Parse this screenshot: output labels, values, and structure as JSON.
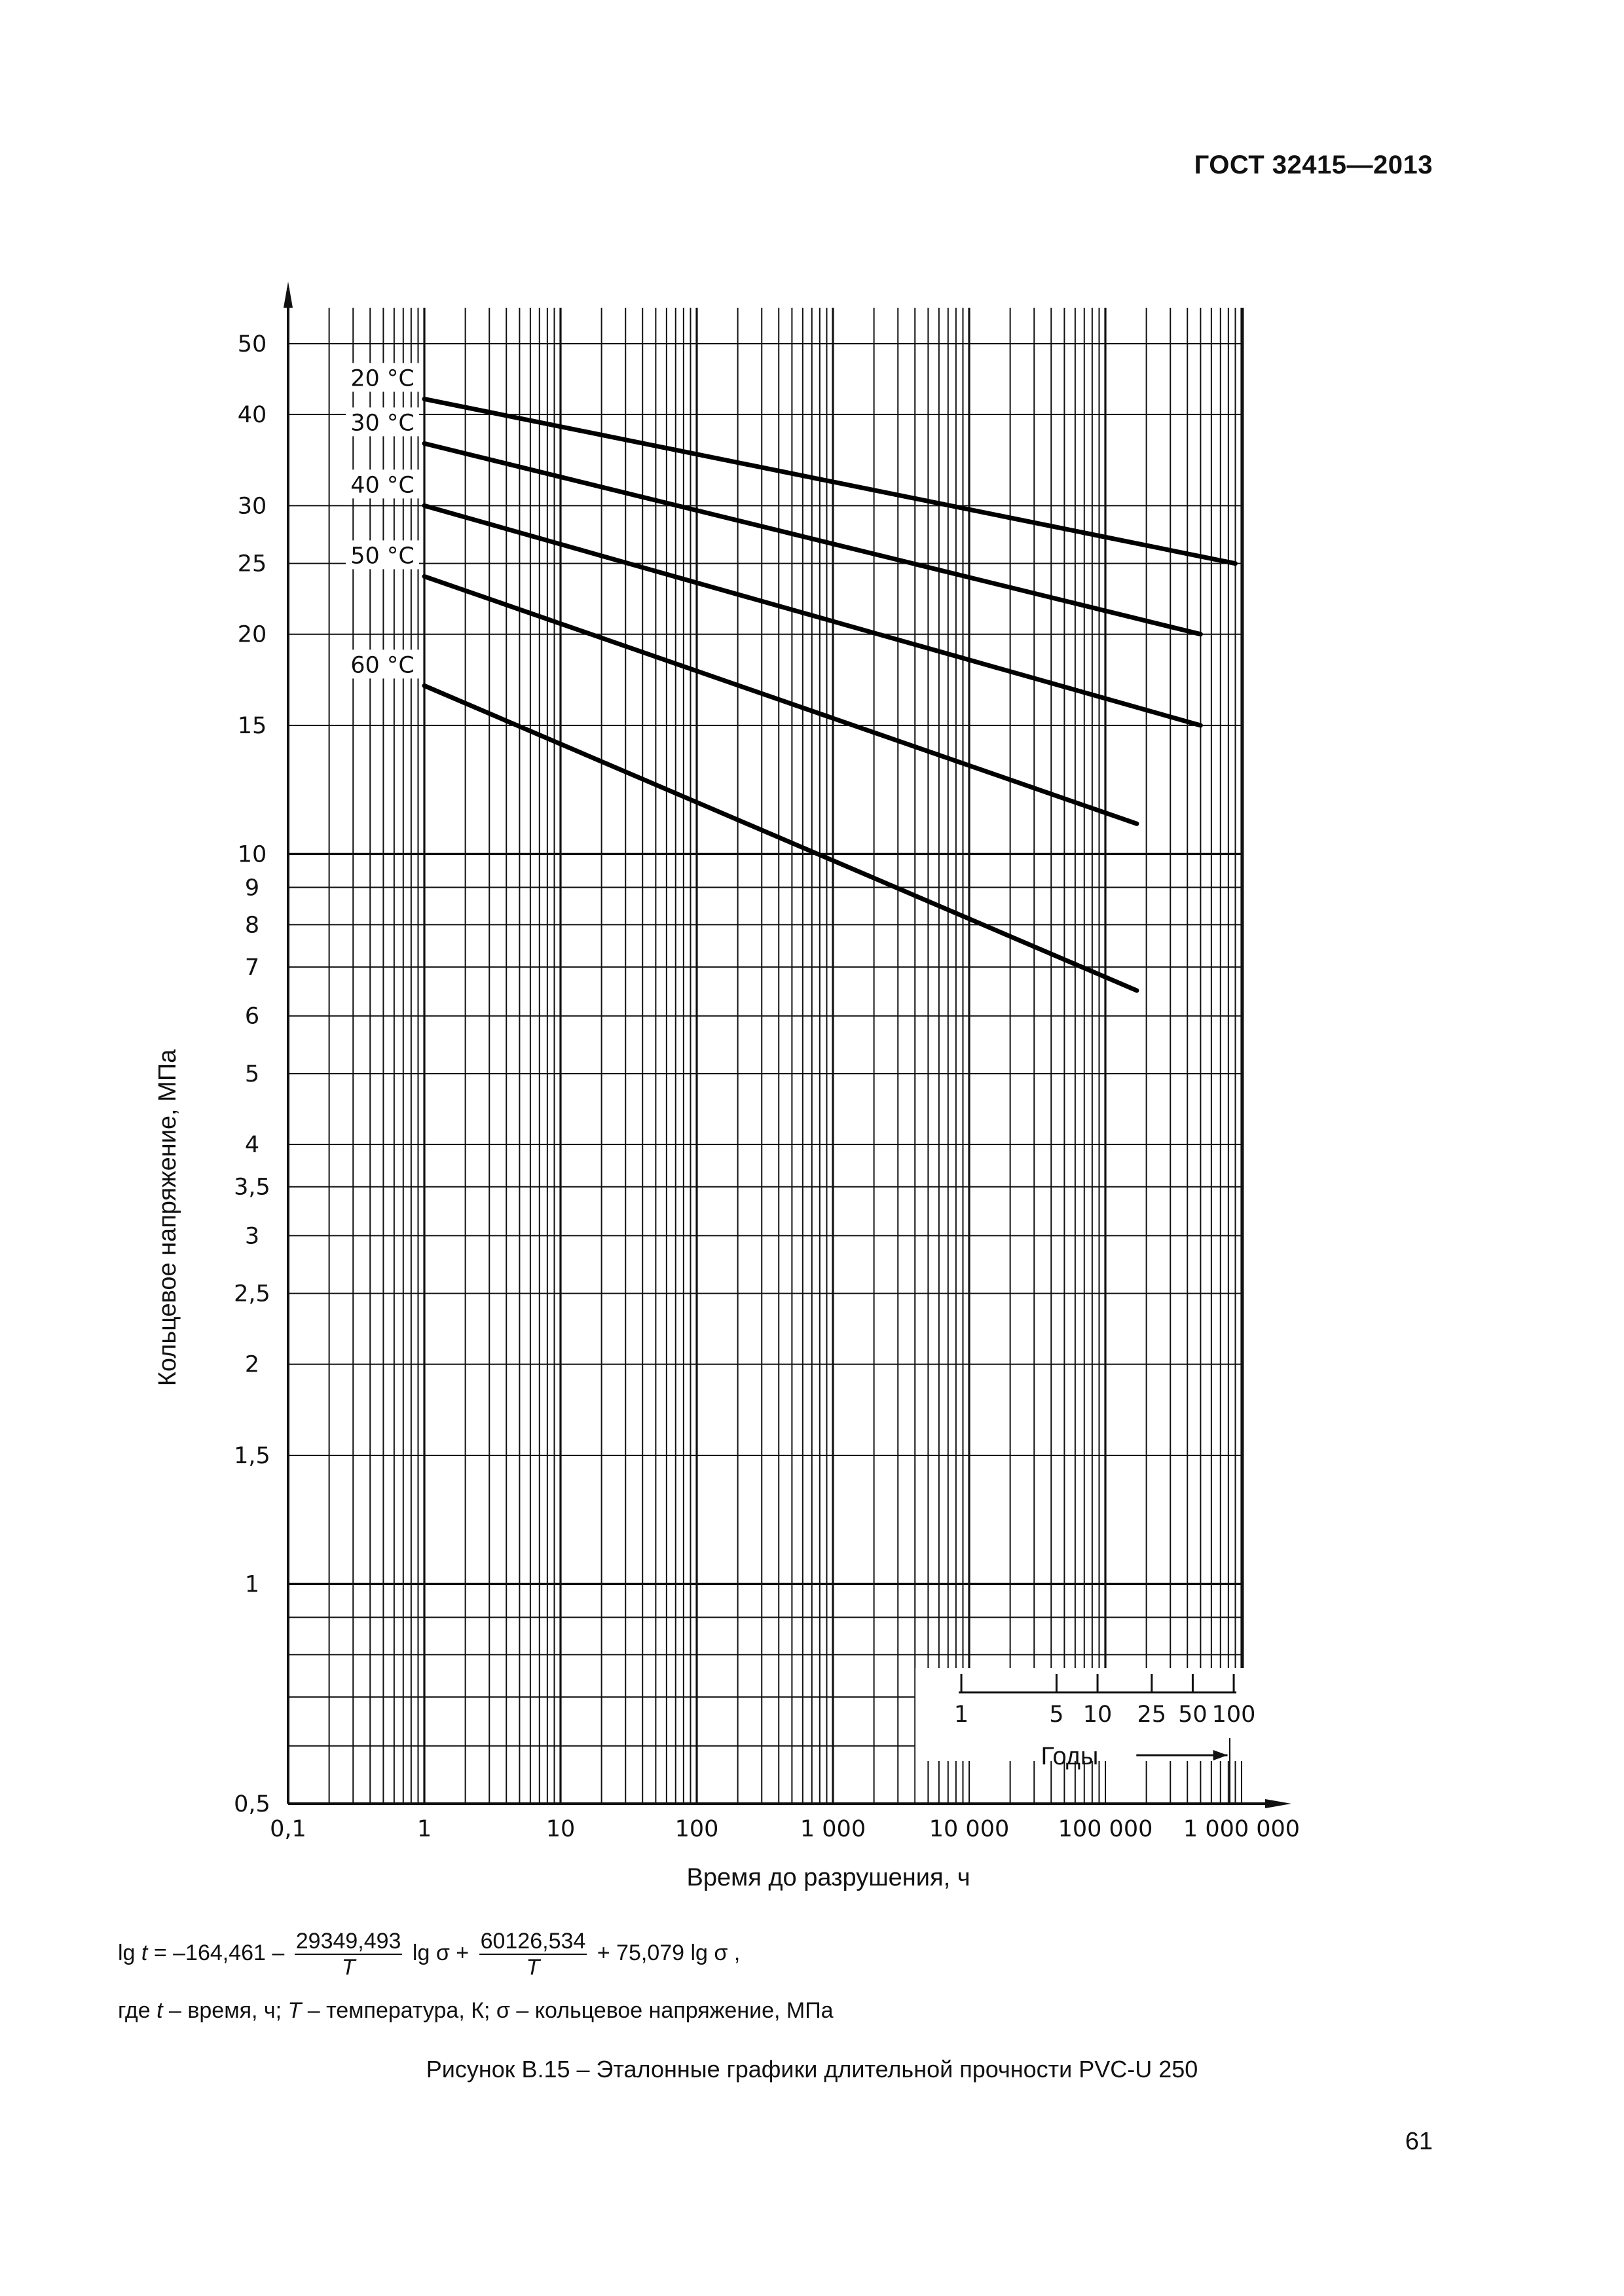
{
  "header": {
    "standard_code": "ГОСТ 32415—2013"
  },
  "chart_data": {
    "type": "line",
    "x_scale": "log",
    "y_scale": "log",
    "xlabel": "Время до разрушения, ч",
    "ylabel": "Кольцевое напряжение, МПа",
    "xlim": [
      0.1,
      3000000
    ],
    "ylim": [
      0.5,
      60
    ],
    "x_ticks": [
      {
        "value": 0.1,
        "label": "0,1"
      },
      {
        "value": 1,
        "label": "1"
      },
      {
        "value": 10,
        "label": "10"
      },
      {
        "value": 100,
        "label": "100"
      },
      {
        "value": 1000,
        "label": "1 000"
      },
      {
        "value": 10000,
        "label": "10 000"
      },
      {
        "value": 100000,
        "label": "100 000"
      },
      {
        "value": 1000000,
        "label": "1 000 000"
      }
    ],
    "y_ticks": [
      {
        "value": 0.5,
        "label": "0,5"
      },
      {
        "value": 1,
        "label": "1"
      },
      {
        "value": 1.5,
        "label": "1,5"
      },
      {
        "value": 2,
        "label": "2"
      },
      {
        "value": 2.5,
        "label": "2,5"
      },
      {
        "value": 3,
        "label": "3"
      },
      {
        "value": 3.5,
        "label": "3,5"
      },
      {
        "value": 4,
        "label": "4"
      },
      {
        "value": 5,
        "label": "5"
      },
      {
        "value": 6,
        "label": "6"
      },
      {
        "value": 7,
        "label": "7"
      },
      {
        "value": 8,
        "label": "8"
      },
      {
        "value": 9,
        "label": "9"
      },
      {
        "value": 10,
        "label": "10"
      },
      {
        "value": 15,
        "label": "15"
      },
      {
        "value": 20,
        "label": "20"
      },
      {
        "value": 25,
        "label": "25"
      },
      {
        "value": 30,
        "label": "30"
      },
      {
        "value": 40,
        "label": "40"
      },
      {
        "value": 50,
        "label": "50"
      }
    ],
    "grid": true,
    "series": [
      {
        "name": "20 °C",
        "x": [
          1,
          900000
        ],
        "y": [
          42,
          25
        ]
      },
      {
        "name": "30 °C",
        "x": [
          1,
          500000
        ],
        "y": [
          36.5,
          20
        ]
      },
      {
        "name": "40 °C",
        "x": [
          1,
          500000
        ],
        "y": [
          30,
          15
        ]
      },
      {
        "name": "50 °C",
        "x": [
          1,
          170000
        ],
        "y": [
          24,
          11
        ]
      },
      {
        "name": "60 °C",
        "x": [
          1,
          170000
        ],
        "y": [
          17,
          6.5
        ]
      }
    ],
    "years_scale": {
      "label": "Годы",
      "ticks": [
        {
          "years": 1,
          "label": "1"
        },
        {
          "years": 5,
          "label": "5"
        },
        {
          "years": 10,
          "label": "10"
        },
        {
          "years": 25,
          "label": "25"
        },
        {
          "years": 50,
          "label": "50"
        },
        {
          "years": 100,
          "label": "100"
        }
      ]
    }
  },
  "formula": {
    "lhs": "lg ",
    "t": "t",
    "part1": " = –164,461 – ",
    "frac1_num": "29349,493",
    "frac1_den": "T",
    "part2": " lg σ + ",
    "frac2_num": "60126,534",
    "frac2_den": "T",
    "part3": " + 75,079 lg σ ,"
  },
  "where_line": {
    "prefix": "где ",
    "t": "t",
    "t_desc": " – время, ч; ",
    "T": "T",
    "T_desc": " – температура, К; σ – кольцевое напряжение, МПа"
  },
  "caption": "Рисунок В.15 – Эталонные графики длительной прочности PVC-U 250",
  "page_number": "61"
}
